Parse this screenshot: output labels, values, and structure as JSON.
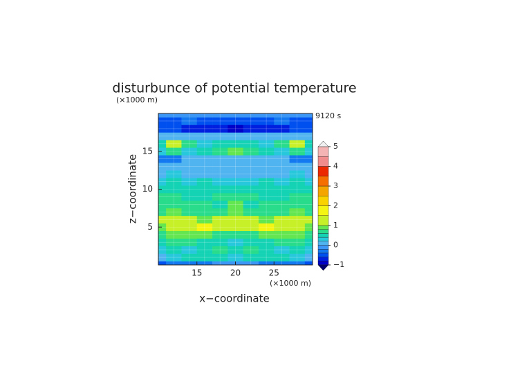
{
  "chart_data": {
    "type": "contour",
    "title": "disturbunce of potential temperature",
    "xlabel": "x−coordinate",
    "ylabel": "z−coordinate",
    "x_unit": "(×1000 m)",
    "y_unit": "(×1000 m)",
    "time_label": "9120 s",
    "x": [
      10,
      12,
      14,
      16,
      18,
      20,
      22,
      24,
      26,
      28,
      30
    ],
    "y": [
      0,
      1,
      2,
      3,
      4,
      5,
      6,
      7,
      8,
      9,
      10,
      11,
      12,
      13,
      14,
      15,
      16,
      17,
      18,
      19,
      20
    ],
    "z": [
      [
        -0.5,
        -0.4,
        -0.3,
        -0.3,
        -0.2,
        -0.2,
        -0.2,
        -0.3,
        -0.3,
        -0.4,
        -0.5
      ],
      [
        0.1,
        0.3,
        0.4,
        0.5,
        0.4,
        0.3,
        0.4,
        0.5,
        0.4,
        0.3,
        0.1
      ],
      [
        0.3,
        0.5,
        0.3,
        0.5,
        0.7,
        0.5,
        0.7,
        0.5,
        0.3,
        0.5,
        0.3
      ],
      [
        0.5,
        0.6,
        0.7,
        0.5,
        0.4,
        0.3,
        0.4,
        0.5,
        0.7,
        0.6,
        0.5
      ],
      [
        0.7,
        0.8,
        0.9,
        0.9,
        0.7,
        0.6,
        0.7,
        0.9,
        0.9,
        0.8,
        0.7
      ],
      [
        0.9,
        1.0,
        1.1,
        1.6,
        1.2,
        1.0,
        1.2,
        1.6,
        1.1,
        1.0,
        0.9
      ],
      [
        1.1,
        1.2,
        1.0,
        0.9,
        1.0,
        1.2,
        1.0,
        0.9,
        1.0,
        1.2,
        1.1
      ],
      [
        0.7,
        0.8,
        0.7,
        0.6,
        0.7,
        0.9,
        0.7,
        0.6,
        0.7,
        0.8,
        0.7
      ],
      [
        0.6,
        0.7,
        0.6,
        0.6,
        0.5,
        0.8,
        0.5,
        0.6,
        0.6,
        0.7,
        0.6
      ],
      [
        0.6,
        0.6,
        0.5,
        0.5,
        0.6,
        0.7,
        0.6,
        0.5,
        0.5,
        0.6,
        0.6
      ],
      [
        0.5,
        0.5,
        0.4,
        0.5,
        0.5,
        0.5,
        0.5,
        0.5,
        0.4,
        0.5,
        0.5
      ],
      [
        0.3,
        0.4,
        0.3,
        0.4,
        0.3,
        0.3,
        0.3,
        0.4,
        0.3,
        0.4,
        0.3
      ],
      [
        0.1,
        0.2,
        0.1,
        0.1,
        0.1,
        0.1,
        0.1,
        0.1,
        0.1,
        0.2,
        0.1
      ],
      [
        0.0,
        0.1,
        0.0,
        0.1,
        0.1,
        0.1,
        0.1,
        0.1,
        0.0,
        0.1,
        0.0
      ],
      [
        -0.4,
        -0.3,
        0.1,
        0.0,
        0.1,
        0.1,
        0.1,
        0.0,
        0.1,
        -0.3,
        -0.4
      ],
      [
        0.3,
        0.6,
        0.3,
        0.4,
        0.6,
        0.8,
        0.6,
        0.4,
        0.3,
        0.6,
        0.3
      ],
      [
        0.5,
        1.1,
        0.6,
        0.3,
        0.4,
        0.5,
        0.4,
        0.3,
        0.6,
        1.1,
        0.5
      ],
      [
        0.0,
        0.1,
        0.1,
        0.0,
        0.0,
        0.0,
        0.0,
        0.0,
        0.1,
        0.1,
        0.0
      ],
      [
        -0.5,
        -0.6,
        -0.7,
        -0.7,
        -0.8,
        -0.9,
        -0.8,
        -0.7,
        -0.7,
        -0.6,
        -0.5
      ],
      [
        -0.6,
        -0.5,
        -0.4,
        -0.5,
        -0.6,
        -0.6,
        -0.6,
        -0.5,
        -0.4,
        -0.5,
        -0.6
      ],
      [
        -0.2,
        -0.2,
        -0.2,
        -0.2,
        -0.2,
        -0.2,
        -0.2,
        -0.2,
        -0.2,
        -0.2,
        -0.2
      ]
    ],
    "levels": [
      -1,
      -0.8,
      -0.6,
      -0.4,
      -0.2,
      0,
      0.2,
      0.4,
      0.6,
      0.8,
      1,
      1.5,
      2,
      2.5,
      3,
      3.5,
      4,
      4.5,
      5
    ],
    "colors": [
      "#0000c8",
      "#0020e0",
      "#0050f0",
      "#1478f0",
      "#3c96f5",
      "#50b4f0",
      "#28c8dc",
      "#14d2b4",
      "#28dc8c",
      "#64e650",
      "#c8f028",
      "#f5f514",
      "#fad200",
      "#f5a500",
      "#f56e00",
      "#eb2800",
      "#f08c8c",
      "#f5b4b4"
    ],
    "under_color": "#00006e",
    "over_color": "#f0f0f0",
    "xlim": [
      10,
      30
    ],
    "ylim": [
      0,
      20
    ],
    "xticks": [
      15,
      20,
      25
    ],
    "yticks": [
      5,
      10,
      15
    ],
    "cbar_lim": [
      -1,
      5
    ],
    "cbar_ticks": [
      {
        "value": -1,
        "label": "−1"
      },
      0,
      1,
      2,
      3,
      4,
      5
    ],
    "grid": true
  }
}
